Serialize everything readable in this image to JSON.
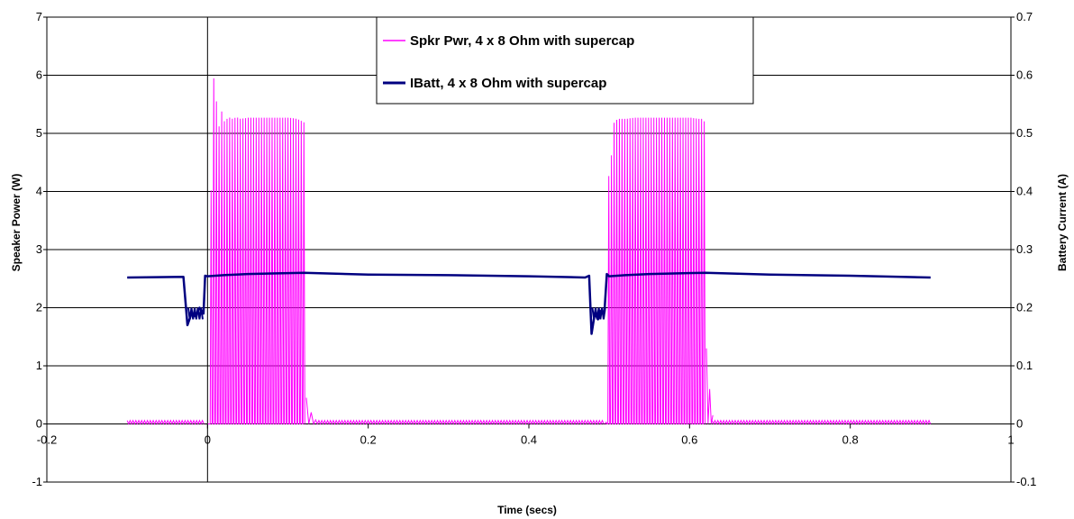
{
  "chart_data": {
    "type": "line",
    "title": "",
    "xlabel": "Time (secs)",
    "ylabel": "Speaker Power (W)",
    "y2label": "Battery Current (A)",
    "xlim": [
      -0.2,
      1
    ],
    "ylim": [
      -1,
      7
    ],
    "y2lim": [
      -0.1,
      0.7
    ],
    "x_ticks": [
      "-0.2",
      "0",
      "0.2",
      "0.4",
      "0.6",
      "0.8",
      "1"
    ],
    "y_ticks": [
      "-1",
      "0",
      "1",
      "2",
      "3",
      "4",
      "5",
      "6",
      "7"
    ],
    "y2_ticks": [
      "-0.1",
      "0",
      "0.1",
      "0.2",
      "0.3",
      "0.4",
      "0.5",
      "0.6",
      "0.7"
    ],
    "grid": true,
    "legend_position": "top-center",
    "series": [
      {
        "name": "Spkr Pwr, 4 x 8 Ohm with supercap",
        "color": "#ff00ff",
        "axis": "left",
        "x": [
          -0.1,
          -0.005,
          0.0,
          0.002,
          0.004,
          0.006,
          0.008,
          0.012,
          0.016,
          0.02,
          0.025,
          0.03,
          0.035,
          0.04,
          0.05,
          0.06,
          0.07,
          0.08,
          0.09,
          0.1,
          0.11,
          0.118,
          0.122,
          0.125,
          0.13,
          0.135,
          0.14,
          0.2,
          0.3,
          0.4,
          0.495,
          0.497,
          0.5,
          0.505,
          0.51,
          0.52,
          0.53,
          0.54,
          0.55,
          0.56,
          0.57,
          0.58,
          0.59,
          0.6,
          0.61,
          0.615,
          0.62,
          0.625,
          0.63,
          0.7,
          0.8,
          0.9
        ],
        "y": [
          0.03,
          0.03,
          0.0,
          3.5,
          4.3,
          5.9,
          6.05,
          5.0,
          5.4,
          5.2,
          5.28,
          5.25,
          5.28,
          5.25,
          5.27,
          5.27,
          5.27,
          5.27,
          5.27,
          5.27,
          5.25,
          5.2,
          5.15,
          0.45,
          0.2,
          0.05,
          0.03,
          0.03,
          0.03,
          0.03,
          0.03,
          4.2,
          4.35,
          5.2,
          5.25,
          5.25,
          5.27,
          5.27,
          5.27,
          5.27,
          5.27,
          5.27,
          5.27,
          5.27,
          5.25,
          5.25,
          5.15,
          1.3,
          0.4,
          0.03,
          0.03,
          0.03
        ]
      },
      {
        "name": "IBatt, 4 x 8 Ohm with supercap",
        "color": "#000080",
        "axis": "right",
        "x": [
          -0.1,
          -0.03,
          -0.025,
          -0.02,
          -0.015,
          -0.01,
          -0.005,
          -0.003,
          0.0,
          0.02,
          0.05,
          0.08,
          0.12,
          0.2,
          0.3,
          0.4,
          0.47,
          0.475,
          0.478,
          0.482,
          0.486,
          0.49,
          0.494,
          0.497,
          0.5,
          0.52,
          0.55,
          0.58,
          0.62,
          0.7,
          0.8,
          0.9
        ],
        "y": [
          0.252,
          0.253,
          0.17,
          0.19,
          0.185,
          0.2,
          0.19,
          0.255,
          0.254,
          0.256,
          0.258,
          0.259,
          0.26,
          0.257,
          0.256,
          0.254,
          0.252,
          0.255,
          0.155,
          0.19,
          0.18,
          0.195,
          0.192,
          0.258,
          0.254,
          0.256,
          0.258,
          0.259,
          0.26,
          0.257,
          0.255,
          0.252
        ]
      }
    ]
  }
}
